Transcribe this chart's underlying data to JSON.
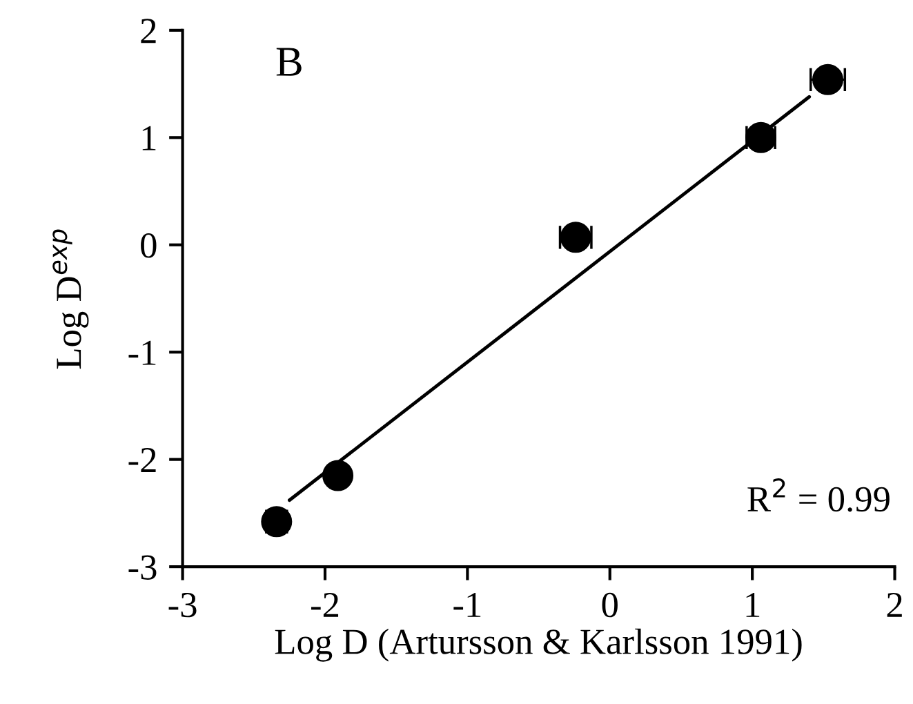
{
  "chart_data": {
    "type": "scatter",
    "xlabel": "Log D (Artursson & Karlsson 1991)",
    "ylabel": "Log D$^{exp}$",
    "annotations": [
      "B",
      "R$^{2}$ = 0.99"
    ],
    "xlim": [
      -3,
      2
    ],
    "ylim": [
      -3,
      2
    ],
    "xticks": [
      -3,
      -2,
      -1,
      0,
      1,
      2
    ],
    "yticks": [
      -3,
      -2,
      -1,
      0,
      1,
      2
    ],
    "grid": false,
    "legend": false,
    "marker": "circle",
    "series": [
      {
        "color": "#000000",
        "x": [
          -2.34,
          -1.91,
          -0.24,
          1.06,
          1.53
        ],
        "values": [
          -2.58,
          -2.15,
          0.07,
          1.0,
          1.54
        ],
        "errors": [
          0.1,
          0.07,
          null,
          null,
          null
        ],
        "xerrors": [
          null,
          null,
          0.11,
          0.1,
          0.12
        ]
      },
      {
        "type": "line",
        "color": "#000000",
        "line_style": "solid",
        "marker": "none",
        "x": [
          -2.25,
          1.4
        ],
        "values": [
          -2.38,
          1.38
        ]
      }
    ]
  }
}
